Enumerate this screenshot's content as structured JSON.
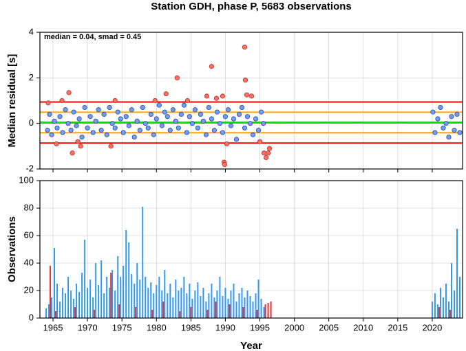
{
  "title": "Station GDH, phase P, 5683 observations",
  "chart_data": [
    {
      "type": "scatter",
      "ylabel": "Median residual [s]",
      "annotation": "median = 0.04, smad = 0.45",
      "xlim": [
        1963.1,
        2024.4
      ],
      "ylim": [
        -2,
        4
      ],
      "yticks": [
        -2,
        0,
        2,
        4
      ],
      "xticks": [
        1965,
        1970,
        1975,
        1980,
        1985,
        1990,
        1995,
        2000,
        2005,
        2010,
        2015,
        2020
      ],
      "grid": true,
      "hlines": [
        {
          "value": 0.04,
          "color": "#00e000"
        },
        {
          "value": 0.49,
          "color": "#ffa500"
        },
        {
          "value": -0.41,
          "color": "#ffa500"
        },
        {
          "value": 0.94,
          "color": "#ff0000"
        },
        {
          "value": -0.86,
          "color": "#ff0000"
        }
      ],
      "series": [
        {
          "color": "#6f9ef0",
          "x": [
            1964.2,
            1964.5,
            1964.8,
            1965.2,
            1965.6,
            1966.0,
            1966.4,
            1966.8,
            1967.2,
            1967.6,
            1968.0,
            1968.4,
            1968.8,
            1969.2,
            1969.6,
            1970.0,
            1970.4,
            1970.8,
            1971.2,
            1971.6,
            1972.0,
            1972.4,
            1972.8,
            1973.2,
            1973.6,
            1974.0,
            1974.4,
            1974.8,
            1975.2,
            1975.6,
            1976.0,
            1976.4,
            1976.8,
            1977.2,
            1977.6,
            1978.0,
            1978.4,
            1978.8,
            1979.2,
            1979.6,
            1980.0,
            1980.4,
            1980.8,
            1981.2,
            1981.6,
            1982.0,
            1982.4,
            1982.8,
            1983.2,
            1983.6,
            1984.0,
            1984.4,
            1984.8,
            1985.2,
            1985.6,
            1986.0,
            1986.4,
            1986.8,
            1987.2,
            1987.6,
            1988.0,
            1988.4,
            1988.8,
            1989.2,
            1989.6,
            1990.0,
            1990.4,
            1990.8,
            1991.2,
            1991.6,
            1992.0,
            1992.4,
            1992.8,
            1993.2,
            1993.6,
            1994.0,
            1994.4,
            1994.8,
            1995.2,
            1995.5,
            2020.1,
            2020.4,
            2020.8,
            2021.2,
            2021.6,
            2022.0,
            2022.4,
            2022.8,
            2023.2,
            2023.6,
            2024.0
          ],
          "values": [
            -0.3,
            0.4,
            -0.5,
            0.1,
            -0.2,
            0.3,
            -0.4,
            0.6,
            0.0,
            -0.3,
            0.5,
            -0.1,
            0.2,
            -0.6,
            0.7,
            -0.2,
            0.3,
            -0.4,
            0.1,
            0.6,
            -0.3,
            0.4,
            -0.5,
            0.7,
            0.0,
            -0.2,
            0.5,
            0.2,
            -0.4,
            0.3,
            -0.1,
            0.6,
            -0.6,
            0.1,
            -0.3,
            0.7,
            0.0,
            -0.2,
            0.4,
            -0.5,
            0.2,
            0.8,
            -0.1,
            0.5,
            0.3,
            -0.3,
            0.6,
            0.1,
            -0.2,
            0.4,
            0.8,
            -0.4,
            0.3,
            0.0,
            0.6,
            -0.2,
            0.4,
            0.1,
            -0.5,
            0.7,
            0.2,
            -0.3,
            0.5,
            0.0,
            -0.4,
            0.3,
            0.6,
            -0.1,
            0.2,
            -0.7,
            0.4,
            0.7,
            -0.2,
            0.3,
            0.0,
            -0.5,
            0.2,
            -0.3,
            0.5,
            0.0,
            0.5,
            -0.4,
            0.2,
            0.7,
            -0.2,
            0.0,
            -0.6,
            0.3,
            -0.3,
            0.4,
            -0.4
          ]
        },
        {
          "color": "#ff7060",
          "x": [
            1964.3,
            1965.5,
            1966.3,
            1967.3,
            1967.8,
            1968.6,
            1969.0,
            1973.4,
            1974.0,
            1979.8,
            1981.4,
            1983.0,
            1984.5,
            1987.3,
            1988.0,
            1988.7,
            1989.6,
            1989.8,
            1989.9,
            1990.2,
            1992.8,
            1992.9,
            1993.1,
            1993.8,
            1995.0,
            1995.6,
            1995.9,
            1996.2,
            1996.4
          ],
          "values": [
            0.9,
            -0.9,
            1.0,
            1.35,
            -1.3,
            -0.8,
            -1.0,
            -1.0,
            1.0,
            1.0,
            1.3,
            2.0,
            1.0,
            1.2,
            2.5,
            1.1,
            1.2,
            -1.7,
            -1.8,
            -0.9,
            3.35,
            1.9,
            1.25,
            1.2,
            -0.8,
            -1.3,
            -1.5,
            -1.3,
            -1.1
          ]
        }
      ]
    },
    {
      "type": "bar",
      "ylabel": "Observations",
      "xlabel": "Year",
      "xlim": [
        1963.1,
        2024.4
      ],
      "ylim": [
        0,
        100
      ],
      "yticks": [
        0,
        20,
        40,
        60,
        80,
        100
      ],
      "xticks": [
        1965,
        1970,
        1975,
        1980,
        1985,
        1990,
        1995,
        2000,
        2005,
        2010,
        2015,
        2020
      ],
      "grid": true,
      "series": [
        {
          "color": "#3399ee",
          "x": [
            1964.0,
            1964.4,
            1964.8,
            1965.2,
            1965.6,
            1966.0,
            1966.4,
            1966.8,
            1967.2,
            1967.6,
            1968.0,
            1968.4,
            1968.8,
            1969.2,
            1969.6,
            1970.0,
            1970.4,
            1970.8,
            1971.2,
            1971.6,
            1972.0,
            1972.4,
            1972.8,
            1973.2,
            1973.6,
            1974.0,
            1974.4,
            1974.8,
            1975.2,
            1975.6,
            1976.0,
            1976.4,
            1976.8,
            1977.2,
            1977.6,
            1978.0,
            1978.4,
            1978.8,
            1979.2,
            1979.6,
            1980.0,
            1980.4,
            1980.8,
            1981.2,
            1981.6,
            1982.0,
            1982.4,
            1982.8,
            1983.2,
            1983.6,
            1984.0,
            1984.4,
            1984.8,
            1985.2,
            1985.6,
            1986.0,
            1986.4,
            1986.8,
            1987.2,
            1987.6,
            1988.0,
            1988.4,
            1988.8,
            1989.2,
            1989.6,
            1990.0,
            1990.4,
            1990.8,
            1991.2,
            1991.6,
            1992.0,
            1992.4,
            1992.8,
            1993.2,
            1993.6,
            1994.0,
            1994.4,
            1994.8,
            1995.2,
            1995.6,
            2020.0,
            2020.4,
            2020.8,
            2021.2,
            2021.6,
            2022.0,
            2022.4,
            2022.8,
            2023.2,
            2023.6,
            2024.0
          ],
          "values": [
            7,
            10,
            15,
            51,
            25,
            12,
            22,
            18,
            30,
            20,
            14,
            25,
            19,
            33,
            57,
            22,
            28,
            15,
            40,
            24,
            42,
            18,
            30,
            22,
            35,
            20,
            45,
            30,
            38,
            64,
            55,
            32,
            25,
            40,
            28,
            81,
            30,
            22,
            26,
            18,
            24,
            30,
            20,
            35,
            18,
            25,
            15,
            28,
            20,
            22,
            30,
            18,
            25,
            14,
            20,
            26,
            16,
            22,
            12,
            18,
            25,
            15,
            20,
            30,
            16,
            22,
            14,
            20,
            25,
            12,
            18,
            22,
            15,
            20,
            16,
            12,
            18,
            28,
            14,
            8,
            12,
            18,
            10,
            22,
            15,
            25,
            12,
            40,
            20,
            65,
            30
          ]
        },
        {
          "color": "#dd3333",
          "x": [
            1964.6,
            1965.4,
            1968.2,
            1971.0,
            1973.4,
            1974.6,
            1977.0,
            1979.4,
            1981.0,
            1983.4,
            1985.0,
            1987.4,
            1988.6,
            1990.6,
            1992.6,
            1994.6,
            1995.8,
            1996.2,
            1996.6,
            2021.0,
            2022.6
          ],
          "values": [
            38,
            5,
            8,
            6,
            33,
            10,
            8,
            6,
            12,
            5,
            8,
            6,
            12,
            10,
            8,
            6,
            10,
            11,
            12,
            8,
            6
          ]
        }
      ]
    }
  ]
}
